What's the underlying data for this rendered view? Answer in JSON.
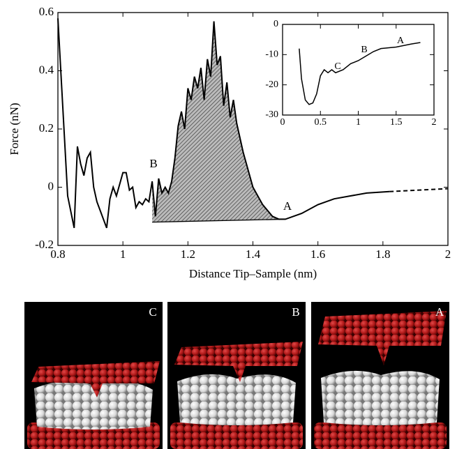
{
  "chart_data": [
    {
      "type": "line",
      "xlabel": "Distance Tip–Sample (nm)",
      "ylabel": "Force (nN)",
      "xlim": [
        0.8,
        2
      ],
      "xticks": [
        0.8,
        1,
        1.2,
        1.4,
        1.6,
        1.8,
        2
      ],
      "ylim": [
        -0.2,
        0.6
      ],
      "yticks": [
        -0.2,
        0,
        0.2,
        0.4,
        0.6
      ],
      "color": "#000000",
      "shaded_range": [
        1.09,
        1.5
      ],
      "series": [
        {
          "style": "solid",
          "x": [
            0.8,
            0.83,
            0.85,
            0.86,
            0.87,
            0.88,
            0.89,
            0.9,
            0.91,
            0.92,
            0.93,
            0.95,
            0.96,
            0.97,
            0.98,
            1.0,
            1.01,
            1.02,
            1.03,
            1.04,
            1.05,
            1.06,
            1.07,
            1.08,
            1.09,
            1.1,
            1.11,
            1.12,
            1.13,
            1.14,
            1.15,
            1.16,
            1.17,
            1.18,
            1.19,
            1.2,
            1.21,
            1.22,
            1.23,
            1.24,
            1.25,
            1.26,
            1.27,
            1.28,
            1.29,
            1.3,
            1.31,
            1.32,
            1.33,
            1.34,
            1.35,
            1.37,
            1.4,
            1.43,
            1.46,
            1.48,
            1.5,
            1.55,
            1.6,
            1.65,
            1.7,
            1.75,
            1.82
          ],
          "values": [
            0.58,
            -0.03,
            -0.14,
            0.14,
            0.08,
            0.04,
            0.1,
            0.12,
            0.0,
            -0.05,
            -0.08,
            -0.14,
            -0.04,
            0.0,
            -0.03,
            0.05,
            0.05,
            -0.01,
            0.0,
            -0.07,
            -0.05,
            -0.06,
            -0.04,
            -0.05,
            0.02,
            -0.1,
            0.03,
            -0.02,
            0.0,
            -0.02,
            0.02,
            0.1,
            0.21,
            0.26,
            0.2,
            0.34,
            0.3,
            0.38,
            0.34,
            0.41,
            0.3,
            0.44,
            0.38,
            0.57,
            0.42,
            0.45,
            0.28,
            0.36,
            0.24,
            0.3,
            0.22,
            0.12,
            0.0,
            -0.06,
            -0.1,
            -0.11,
            -0.11,
            -0.09,
            -0.06,
            -0.04,
            -0.03,
            -0.02,
            -0.015
          ]
        },
        {
          "style": "dashed",
          "x": [
            1.82,
            2.0
          ],
          "values": [
            -0.015,
            -0.005
          ]
        }
      ],
      "baseline": {
        "x": [
          1.09,
          1.5
        ],
        "values": [
          -0.12,
          -0.11
        ]
      },
      "annotations": [
        "B",
        "A"
      ]
    },
    {
      "type": "line",
      "xlim": [
        0,
        2
      ],
      "xticks": [
        0,
        0.5,
        1,
        1.5,
        2
      ],
      "ylim": [
        -30,
        0
      ],
      "yticks": [
        -30,
        -20,
        -10,
        0
      ],
      "color": "#000000",
      "series": [
        {
          "style": "solid",
          "x": [
            0.22,
            0.25,
            0.3,
            0.35,
            0.4,
            0.45,
            0.5,
            0.55,
            0.6,
            0.65,
            0.7,
            0.8,
            0.9,
            1.0,
            1.1,
            1.2,
            1.3,
            1.5,
            1.7,
            1.82
          ],
          "values": [
            -8,
            -18,
            -25,
            -26.5,
            -26,
            -23,
            -17,
            -15,
            -16,
            -15,
            -16,
            -15,
            -13,
            -12,
            -10.5,
            -9,
            -8,
            -7.5,
            -6.5,
            -6
          ]
        }
      ],
      "annotations": [
        "C",
        "B",
        "A"
      ]
    }
  ],
  "panels": [
    {
      "label": "C"
    },
    {
      "label": "B"
    },
    {
      "label": "A"
    }
  ]
}
